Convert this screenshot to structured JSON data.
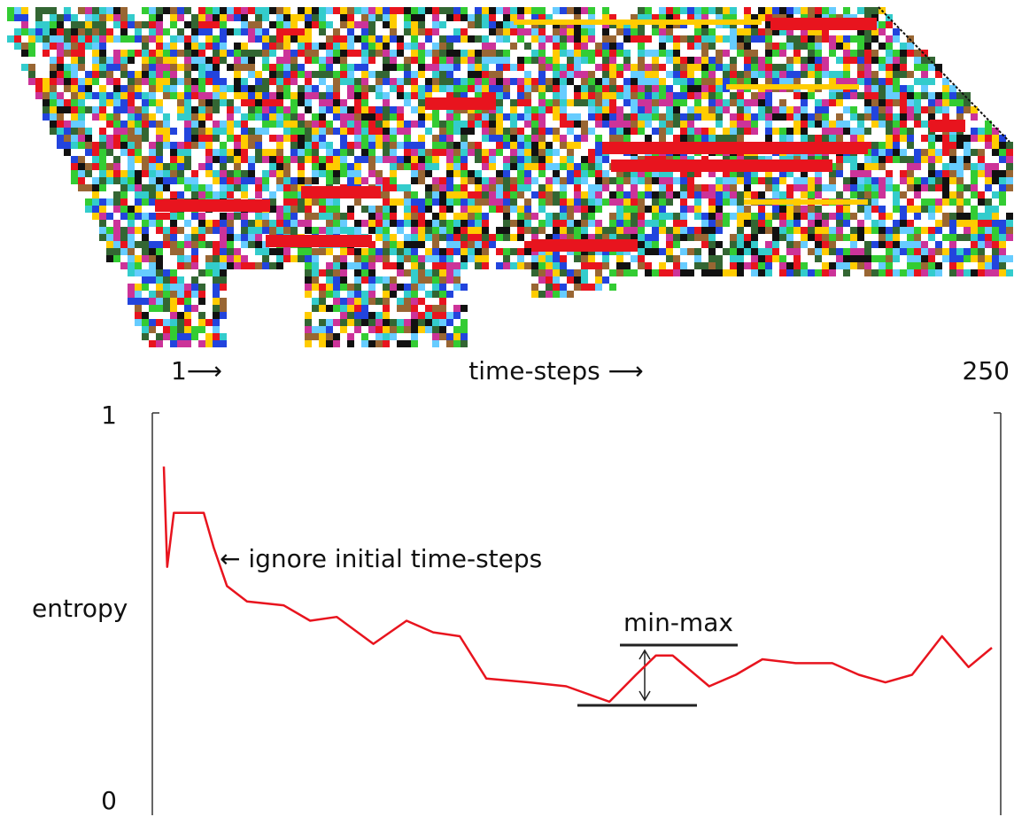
{
  "chart_data": {
    "type": "line",
    "xlabel": "time-steps ⟶",
    "ylabel": "entropy",
    "annotations": [
      "← ignore initial time-steps",
      "min-max"
    ],
    "x": [
      1,
      2,
      4,
      13,
      16,
      20,
      26,
      37,
      45,
      53,
      64,
      74,
      82,
      90,
      98,
      111,
      122,
      135,
      143,
      149,
      154,
      165,
      173,
      181,
      191,
      202,
      210,
      218,
      226,
      235,
      243,
      250
    ],
    "series": [
      {
        "color": "#e8141e",
        "values": [
          0.87,
          0.61,
          0.75,
          0.75,
          0.66,
          0.56,
          0.52,
          0.51,
          0.47,
          0.48,
          0.41,
          0.47,
          0.44,
          0.43,
          0.32,
          0.31,
          0.3,
          0.26,
          0.33,
          0.38,
          0.38,
          0.3,
          0.33,
          0.37,
          0.36,
          0.36,
          0.33,
          0.31,
          0.33,
          0.43,
          0.35,
          0.4
        ]
      }
    ],
    "xlim": [
      1,
      250
    ],
    "xticks": [
      {
        "value": 1,
        "label": "1⟶"
      },
      250
    ],
    "ylim": [
      0,
      1
    ],
    "yticks": [
      0,
      1
    ]
  }
}
